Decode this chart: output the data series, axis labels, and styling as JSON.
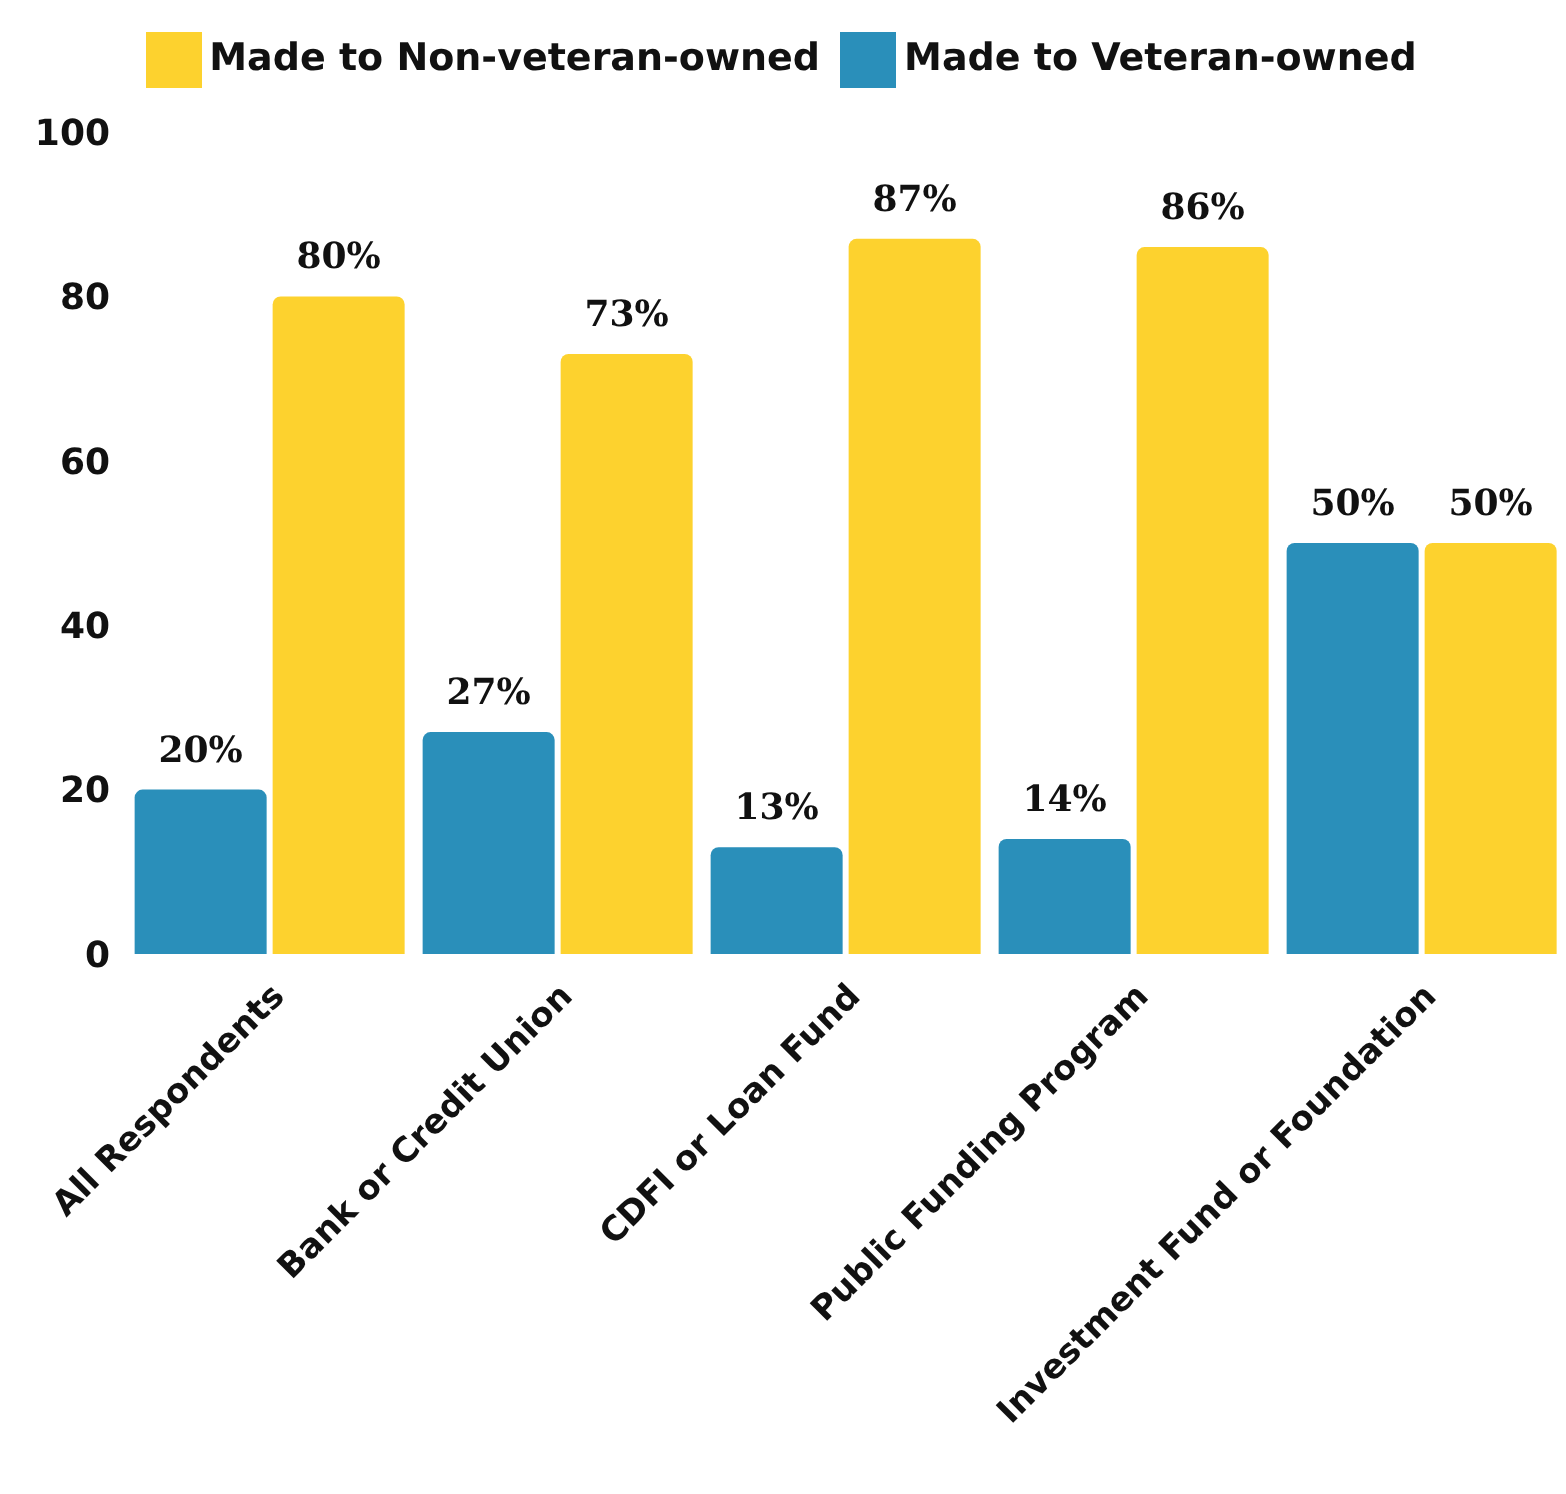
{
  "chart_data": {
    "type": "bar",
    "categories": [
      "All Respondents",
      "Bank or Credit Union",
      "CDFI or Loan Fund",
      "Public Funding Program",
      "Investment Fund or Foundation"
    ],
    "series": [
      {
        "name": "Made to Veteran-owned",
        "color": "#2a8fba",
        "values": [
          20,
          27,
          13,
          14,
          50
        ],
        "value_labels": [
          "20%",
          "27%",
          "13%",
          "14%",
          "50%"
        ]
      },
      {
        "name": "Made to Non-veteran-owned",
        "color": "#fdd22e",
        "values": [
          80,
          73,
          87,
          86,
          50
        ],
        "value_labels": [
          "80%",
          "73%",
          "87%",
          "86%",
          "50%"
        ]
      }
    ],
    "ylim": [
      0,
      100
    ],
    "yticks": [
      0,
      20,
      40,
      60,
      80,
      100
    ],
    "grid": false,
    "legend": "top"
  }
}
